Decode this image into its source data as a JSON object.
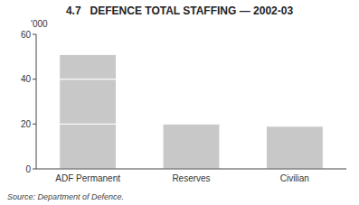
{
  "chart_data": {
    "type": "bar",
    "title": "4.7   DEFENCE TOTAL STAFFING — 2002-03",
    "categories": [
      "ADF Permanent",
      "Reserves",
      "Civilian"
    ],
    "values": [
      [
        20,
        20,
        11
      ],
      [
        20
      ],
      [
        19
      ]
    ],
    "stacked": true,
    "color": "#c8c8c8",
    "ylabel": "'000",
    "annotations": [
      "Source: Department of Defence."
    ],
    "ylim": [
      0,
      60
    ],
    "yticks": [
      0,
      20,
      40,
      60
    ],
    "grid": false
  }
}
